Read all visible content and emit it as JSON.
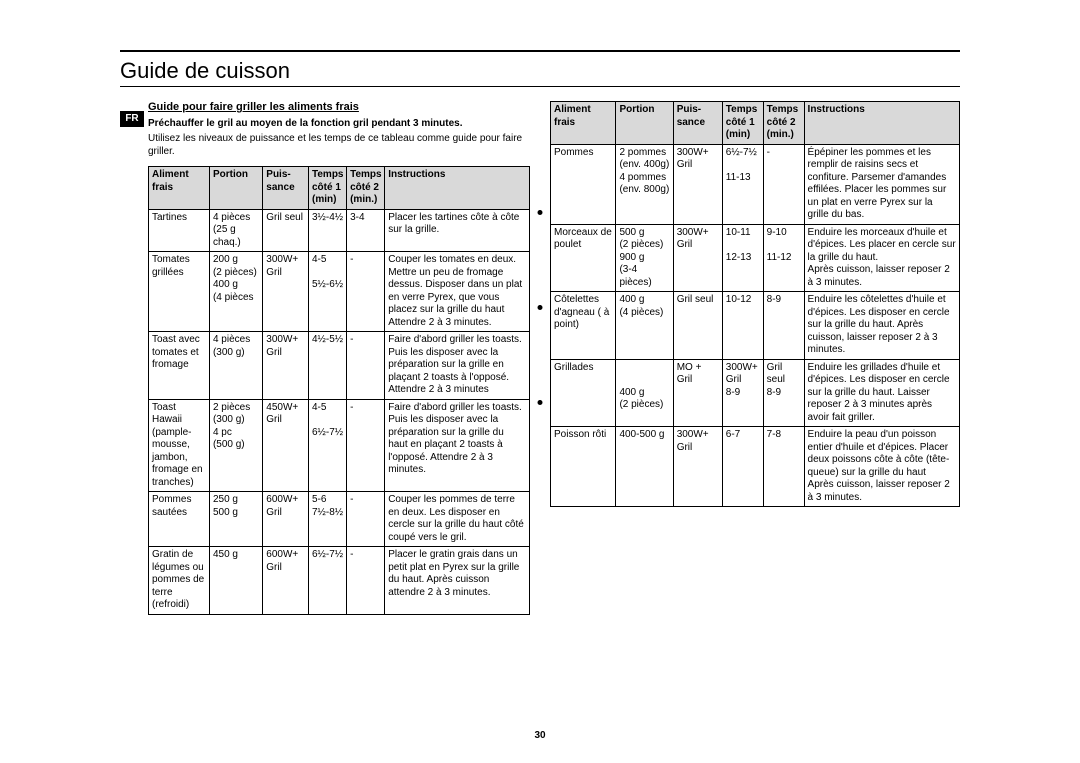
{
  "page_number": "30",
  "lang_tag": "FR",
  "title": "Guide de cuisson",
  "section_heading": "Guide pour faire griller les aliments frais",
  "preheat_note": "Préchauffer le gril au moyen de la fonction gril pendant 3 minutes.",
  "intro_text": "Utilisez les niveaux de puissance et les temps de ce tableau comme guide pour faire griller.",
  "headers": {
    "aliment": "Aliment frais",
    "portion": "Portion",
    "puissance_l1": "Puis-",
    "puissance_l2": "sance",
    "t1_l1": "Temps",
    "t1_l2": "côté 1",
    "t1_l3": "(min)",
    "t2_l1": "Temps",
    "t2_l2": "côté 2",
    "t2_l3": "(min.)",
    "instructions": "Instructions"
  },
  "table_left": [
    {
      "aliment": "Tartines",
      "portion": "4 pièces\n(25 g chaq.)",
      "puissance": "Gril seul",
      "t1": "3½-4½",
      "t2": "3-4",
      "instr": "Placer les tartines côte à côte sur la grille."
    },
    {
      "aliment": "Tomates grillées",
      "portion": "200 g\n(2 pièces)\n400 g\n(4 pièces",
      "puissance": "300W+\nGril",
      "t1": "4-5\n\n5½-6½",
      "t2": "-",
      "instr": "Couper les tomates en deux. Mettre un peu de fromage dessus. Disposer dans un plat en verre Pyrex, que vous placez sur la grille du haut\nAttendre 2 à 3 minutes."
    },
    {
      "aliment": "Toast avec tomates et fromage",
      "portion": "4 pièces\n(300 g)",
      "puissance": "300W+\nGril",
      "t1": "4½-5½",
      "t2": "-",
      "instr": "Faire d'abord griller les toasts. Puis les disposer avec la préparation sur la grille en plaçant 2 toasts à l'opposé. Attendre 2 à 3 minutes"
    },
    {
      "aliment": "Toast Hawaii (pample-mousse, jambon, fromage en tranches)",
      "portion": "2 pièces\n(300 g)\n4 pc\n(500 g)",
      "puissance": "450W+\nGril",
      "t1": "4-5\n\n6½-7½",
      "t2": "-",
      "instr": "Faire d'abord griller les toasts. Puis les disposer avec la préparation sur la grille du haut en plaçant 2 toasts à l'opposé. Attendre 2 à 3 minutes."
    },
    {
      "aliment": "Pommes sautées",
      "portion": "250 g\n500 g",
      "puissance": "600W+\nGril",
      "t1": "5-6\n7½-8½",
      "t2": "-",
      "instr": "Couper les pommes de terre en deux. Les disposer en cercle sur la grille du haut côté coupé vers le gril."
    },
    {
      "aliment": "Gratin de légumes ou pommes de terre (refroidi)",
      "portion": "450 g",
      "puissance": "600W+\nGril",
      "t1": "6½-7½",
      "t2": "-",
      "instr": "Placer le gratin grais dans un petit plat en Pyrex sur la grille du haut. Après cuisson attendre 2 à 3 minutes."
    }
  ],
  "table_right": [
    {
      "aliment": "Pommes",
      "portion": "2 pommes\n(env. 400g)\n4 pommes\n(env. 800g)",
      "puissance": "300W+\nGril",
      "t1": "6½-7½\n\n11-13",
      "t2": "-",
      "instr": "Épépiner les pommes et les remplir de raisins secs et confiture. Parsemer d'amandes effilées. Placer les pommes sur un plat en verre Pyrex sur la grille du bas."
    },
    {
      "aliment": "Morceaux de poulet",
      "portion": "500 g\n(2 pièces)\n900 g\n(3-4 pièces)",
      "puissance": "300W+\nGril",
      "t1": "10-11\n\n12-13",
      "t2": "9-10\n\n11-12",
      "instr": "Enduire les morceaux d'huile et d'épices. Les placer en cercle sur la grille du haut.\nAprès cuisson, laisser reposer 2 à 3 minutes."
    },
    {
      "aliment": "Côtelettes d'agneau ( à point)",
      "portion": "400 g\n(4 pièces)",
      "puissance": "Gril seul",
      "t1": "10-12",
      "t2": "8-9",
      "instr": "Enduire les côtelettes d'huile et  d'épices. Les disposer en cercle sur la grille du haut. Après cuisson, laisser reposer 2 à 3 minutes."
    },
    {
      "aliment": "Grillades",
      "portion": "\n\n400 g\n(2 pièces)",
      "puissance": "MO +\nGril",
      "t1": "300W+\nGril\n8-9",
      "t2": "Gril seul\n8-9",
      "instr": "Enduire les grillades d'huile et d'épices. Les disposer en cercle sur la grille du haut. Laisser reposer 2 à 3 minutes après avoir fait griller."
    },
    {
      "aliment": "Poisson rôti",
      "portion": "400-500 g",
      "puissance": "300W+\nGril",
      "t1": "6-7",
      "t2": "7-8",
      "instr": "Enduire la peau d'un poisson entier d'huile et d'épices. Placer deux poissons côte à côte (tête-queue) sur la grille du haut\nAprès cuisson, laisser reposer 2 à 3 minutes."
    }
  ],
  "colors": {
    "header_bg": "#d9d9d9",
    "border": "#000000",
    "text": "#000000",
    "background": "#ffffff",
    "tag_bg": "#000000",
    "tag_fg": "#ffffff"
  }
}
